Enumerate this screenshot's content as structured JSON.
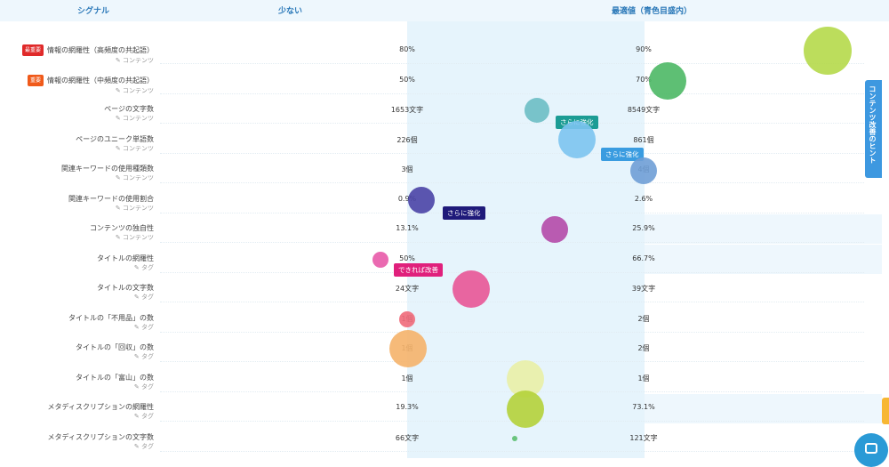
{
  "header": {
    "signal": "シグナル",
    "few": "少ない",
    "optimal": "最適値（青色目盛内）"
  },
  "hint_tab": "コンテンツ改善のヒント",
  "rows": [
    {
      "name": "情報の網羅性（高頻度の共起語）",
      "sub": "コンテンツ",
      "badge": "最重要",
      "badge_color": "#e02a2a",
      "low": "80%",
      "high": "90%",
      "bubble_color": "#b5d94a",
      "tip": ""
    },
    {
      "name": "情報の網羅性（中頻度の共起語）",
      "sub": "コンテンツ",
      "badge": "重要",
      "badge_color": "#f05a1a",
      "low": "50%",
      "high": "70%",
      "bubble_color": "#4cb865",
      "tip": ""
    },
    {
      "name": "ページの文字数",
      "sub": "コンテンツ",
      "badge": "",
      "low": "1653文字",
      "high": "8549文字",
      "bubble_color": "#6cbec4",
      "tip": "さらに強化",
      "tip_color": "#1c9c94"
    },
    {
      "name": "ページのユニーク単語数",
      "sub": "コンテンツ",
      "badge": "",
      "low": "226個",
      "high": "861個",
      "bubble_color": "#7cc4f0",
      "tip": "さらに強化",
      "tip_color": "#3a9ce0"
    },
    {
      "name": "関連キーワードの使用種類数",
      "sub": "コンテンツ",
      "badge": "",
      "low": "3個",
      "high": "4個",
      "bubble_color": "#6f9ed6",
      "tip": ""
    },
    {
      "name": "関連キーワードの使用割合",
      "sub": "コンテンツ",
      "badge": "",
      "low": "0.9%",
      "high": "2.6%",
      "bubble_color": "#4a44a6",
      "tip": "さらに強化",
      "tip_color": "#1f1a7a"
    },
    {
      "name": "コンテンツの独自性",
      "sub": "コンテンツ",
      "badge": "",
      "low": "13.1%",
      "high": "25.9%",
      "bubble_color": "#b44aa8",
      "tip": ""
    },
    {
      "name": "タイトルの網羅性",
      "sub": "タグ",
      "badge": "",
      "low": "50%",
      "high": "66.7%",
      "bubble_color": "#e85aa8",
      "tip": "できれば改善",
      "tip_color": "#e0207c"
    },
    {
      "name": "タイトルの文字数",
      "sub": "タグ",
      "badge": "",
      "low": "24文字",
      "high": "39文字",
      "bubble_color": "#e85596",
      "tip": ""
    },
    {
      "name": "タイトルの「不用品」の数",
      "sub": "タグ",
      "badge": "",
      "low": "1個",
      "high": "2個",
      "bubble_color": "#f06a7a",
      "tip": ""
    },
    {
      "name": "タイトルの「回収」の数",
      "sub": "タグ",
      "badge": "",
      "low": "1個",
      "high": "2個",
      "bubble_color": "#f5b26a",
      "tip": ""
    },
    {
      "name": "タイトルの「富山」の数",
      "sub": "タグ",
      "badge": "",
      "low": "1個",
      "high": "1個",
      "bubble_color": "#e9efa6",
      "tip": ""
    },
    {
      "name": "メタディスクリプションの網羅性",
      "sub": "タグ",
      "badge": "",
      "low": "19.3%",
      "high": "73.1%",
      "bubble_color": "#b4d13a",
      "tip": ""
    },
    {
      "name": "メタディスクリプションの文字数",
      "sub": "タグ",
      "badge": "",
      "low": "66文字",
      "high": "121文字",
      "bubble_color": "#5cbf70",
      "tip": ""
    }
  ]
}
